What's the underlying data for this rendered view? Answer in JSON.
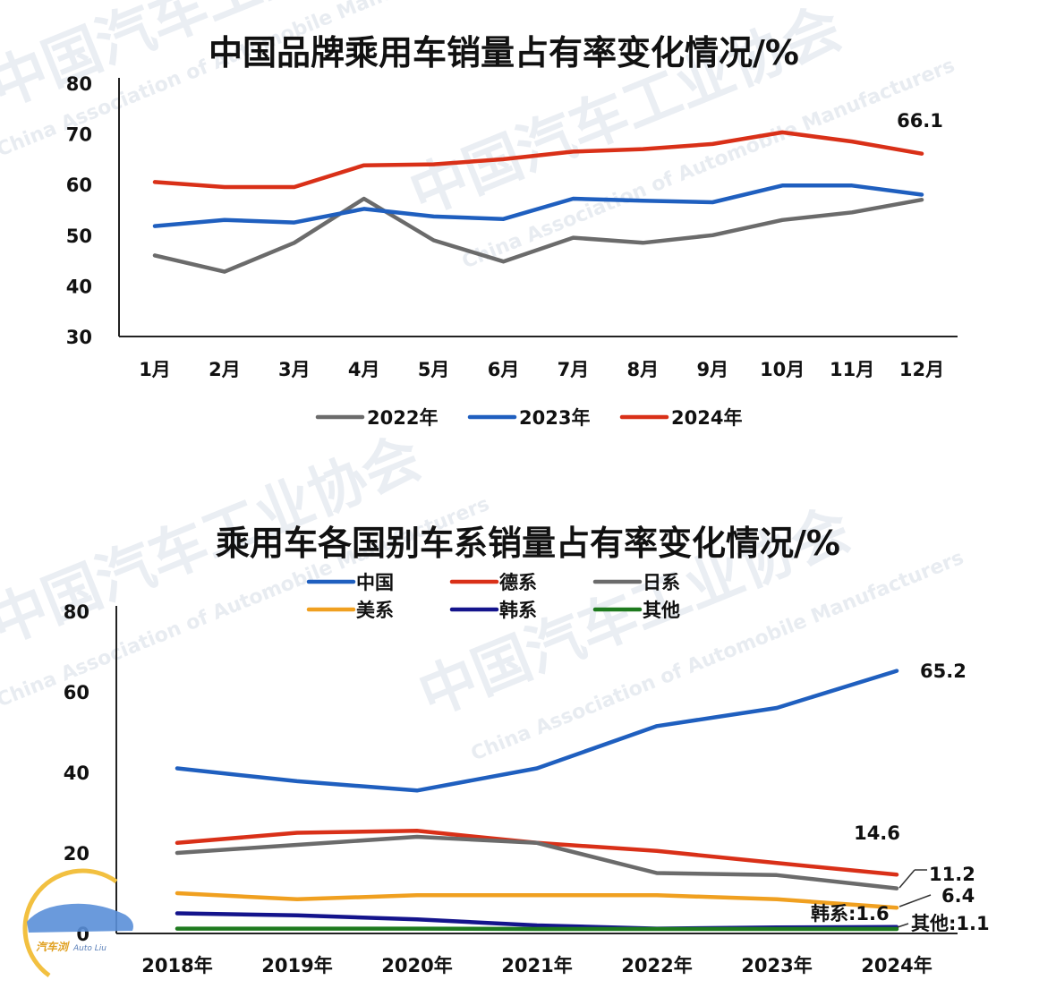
{
  "chart_data": [
    {
      "type": "line",
      "title": "中国品牌乘用车销量占有率变化情况/%",
      "categories": [
        "1月",
        "2月",
        "3月",
        "4月",
        "5月",
        "6月",
        "7月",
        "8月",
        "9月",
        "10月",
        "11月",
        "12月"
      ],
      "ylim": [
        30,
        80
      ],
      "yticks": [
        30,
        40,
        50,
        60,
        70,
        80
      ],
      "series": [
        {
          "name": "2022年",
          "color": "#6b6b6b",
          "values": [
            46,
            42.8,
            48.5,
            57.2,
            49,
            44.8,
            49.5,
            48.5,
            50,
            53,
            54.5,
            57
          ]
        },
        {
          "name": "2023年",
          "color": "#1f5fbf",
          "values": [
            51.8,
            53,
            52.5,
            55.2,
            53.7,
            53.2,
            57.2,
            56.8,
            56.5,
            59.8,
            59.8,
            58
          ]
        },
        {
          "name": "2024年",
          "color": "#d93018",
          "values": [
            60.5,
            59.5,
            59.5,
            63.8,
            64,
            65,
            66.5,
            67,
            68,
            70.3,
            68.5,
            66.1
          ]
        }
      ],
      "annotations": [
        {
          "text": "66.1"
        }
      ]
    },
    {
      "type": "line",
      "title": "乘用车各国别车系销量占有率变化情况/%",
      "categories": [
        "2018年",
        "2019年",
        "2020年",
        "2021年",
        "2022年",
        "2023年",
        "2024年"
      ],
      "ylim": [
        0,
        80
      ],
      "yticks": [
        0,
        20,
        40,
        60,
        80
      ],
      "series": [
        {
          "name": "中国",
          "color": "#1f5fbf",
          "values": [
            41,
            37.8,
            35.5,
            41,
            51.5,
            56,
            65.2
          ]
        },
        {
          "name": "德系",
          "color": "#d93018",
          "values": [
            22.5,
            25,
            25.5,
            22.5,
            20.5,
            17.5,
            14.6
          ]
        },
        {
          "name": "日系",
          "color": "#6b6b6b",
          "values": [
            20,
            22,
            24,
            22.5,
            15,
            14.5,
            11.2
          ]
        },
        {
          "name": "美系",
          "color": "#f0a020",
          "values": [
            10,
            8.5,
            9.5,
            9.5,
            9.5,
            8.5,
            6.4
          ]
        },
        {
          "name": "韩系",
          "color": "#14148c",
          "values": [
            5,
            4.5,
            3.5,
            2,
            1.2,
            1.5,
            1.6
          ]
        },
        {
          "name": "其他",
          "color": "#1e7a1e",
          "values": [
            1.2,
            1.2,
            1.2,
            1.1,
            1.1,
            1.1,
            1.1
          ]
        }
      ],
      "annotations": [
        {
          "text": "65.2"
        },
        {
          "text": "14.6"
        },
        {
          "text": "11.2"
        },
        {
          "text": "6.4"
        },
        {
          "text": "韩系:1.6"
        },
        {
          "text": "其他:1.1"
        }
      ]
    }
  ],
  "watermark": {
    "cn_top": "中国汽车工业协会",
    "en_top": "China Association of Automobile Manufacturers"
  },
  "logo": {
    "name": "汽车浏",
    "sub": "Auto Liu"
  }
}
